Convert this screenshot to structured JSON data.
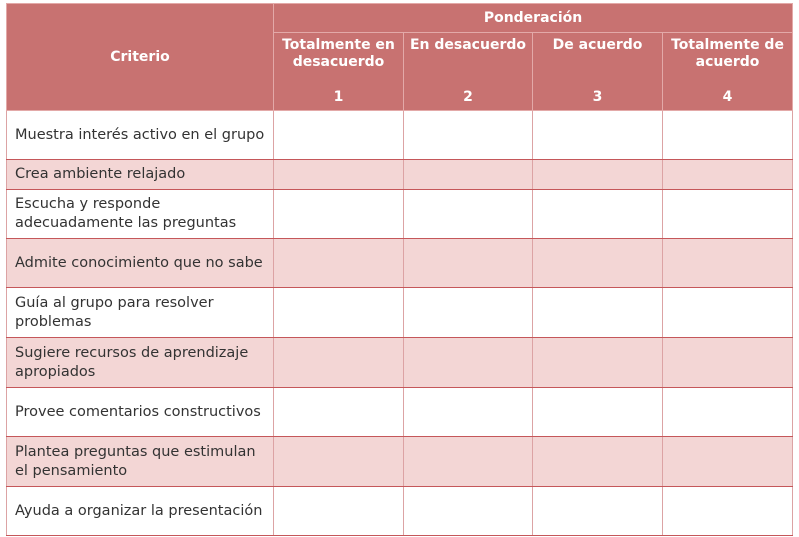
{
  "header": {
    "criterio": "Criterio",
    "ponderacion": "Ponderación",
    "scale": [
      {
        "label": "Totalmente en desacuerdo",
        "value": "1"
      },
      {
        "label": "En desacuerdo",
        "value": "2"
      },
      {
        "label": "De acuerdo",
        "value": "3"
      },
      {
        "label": "Totalmente de acuerdo",
        "value": "4"
      }
    ]
  },
  "rows": [
    "Muestra interés activo en el grupo",
    "Crea ambiente relajado",
    "Escucha y responde adecuadamente las preguntas",
    "Admite conocimiento que no sabe",
    "Guía al grupo para resolver problemas",
    "Sugiere recursos de aprendizaje apropiados",
    "Provee comentarios constructivos",
    "Plantea preguntas que estimulan el pensamiento",
    "Ayuda a organizar la presentación"
  ],
  "colors": {
    "header": "#c87271",
    "alt_row": "#f3d6d5",
    "border": "#c5575a"
  }
}
